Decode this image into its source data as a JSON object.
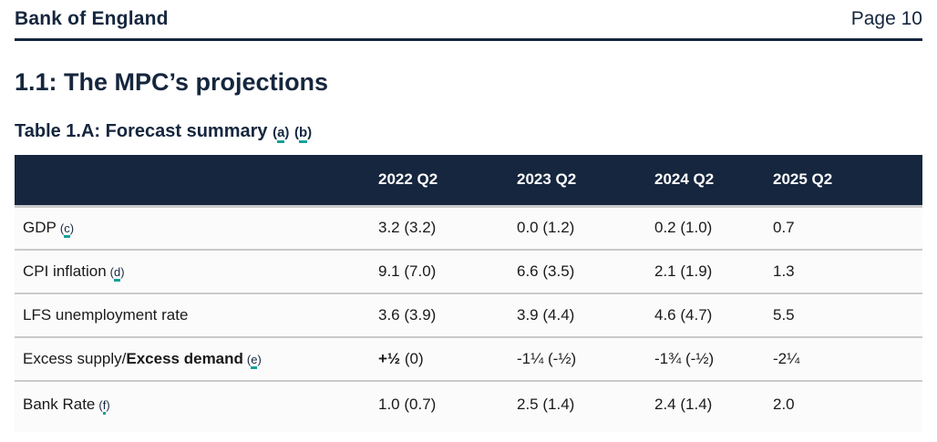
{
  "header": {
    "brand": "Bank of England",
    "page_label": "Page 10"
  },
  "section_title": "1.1: The MPC’s projections",
  "table_title": {
    "text": "Table 1.A: Forecast summary",
    "footnotes": [
      "a",
      "b"
    ]
  },
  "table": {
    "columns": [
      "2022 Q2",
      "2023 Q2",
      "2024 Q2",
      "2025 Q2"
    ],
    "rows": [
      {
        "label_parts": [
          {
            "t": "GDP",
            "b": false
          }
        ],
        "footnote": "c",
        "cells": [
          [
            {
              "t": "3.2 (3.2)",
              "b": false
            }
          ],
          [
            {
              "t": "0.0 (1.2)",
              "b": false
            }
          ],
          [
            {
              "t": "0.2 (1.0)",
              "b": false
            }
          ],
          [
            {
              "t": "0.7",
              "b": false
            }
          ]
        ]
      },
      {
        "label_parts": [
          {
            "t": "CPI inflation",
            "b": false
          }
        ],
        "footnote": "d",
        "cells": [
          [
            {
              "t": "9.1 (7.0)",
              "b": false
            }
          ],
          [
            {
              "t": "6.6 (3.5)",
              "b": false
            }
          ],
          [
            {
              "t": "2.1 (1.9)",
              "b": false
            }
          ],
          [
            {
              "t": "1.3",
              "b": false
            }
          ]
        ]
      },
      {
        "label_parts": [
          {
            "t": "LFS unemployment rate",
            "b": false
          }
        ],
        "footnote": "",
        "cells": [
          [
            {
              "t": "3.6 (3.9)",
              "b": false
            }
          ],
          [
            {
              "t": "3.9 (4.4)",
              "b": false
            }
          ],
          [
            {
              "t": "4.6 (4.7)",
              "b": false
            }
          ],
          [
            {
              "t": "5.5",
              "b": false
            }
          ]
        ]
      },
      {
        "label_parts": [
          {
            "t": "Excess supply/",
            "b": false
          },
          {
            "t": "Excess demand",
            "b": true
          }
        ],
        "footnote": "e",
        "cells": [
          [
            {
              "t": "+½",
              "b": true
            },
            {
              "t": " (0)",
              "b": false
            }
          ],
          [
            {
              "t": "-1¼ (-½)",
              "b": false
            }
          ],
          [
            {
              "t": "-1¾ (-½)",
              "b": false
            }
          ],
          [
            {
              "t": "-2¼",
              "b": false
            }
          ]
        ]
      },
      {
        "label_parts": [
          {
            "t": "Bank Rate",
            "b": false
          }
        ],
        "footnote": "f",
        "cells": [
          [
            {
              "t": "1.0 (0.7)",
              "b": false
            }
          ],
          [
            {
              "t": "2.5 (1.4)",
              "b": false
            }
          ],
          [
            {
              "t": "2.4 (1.4)",
              "b": false
            }
          ],
          [
            {
              "t": "2.0",
              "b": false
            }
          ]
        ]
      }
    ]
  },
  "colors": {
    "navy": "#15263E",
    "teal": "#14A09B",
    "row_border": "#C9C9C9",
    "row_bg": "#FBFBFC",
    "header_text": "#FFFFFF",
    "body_text": "#1A1A1A"
  }
}
